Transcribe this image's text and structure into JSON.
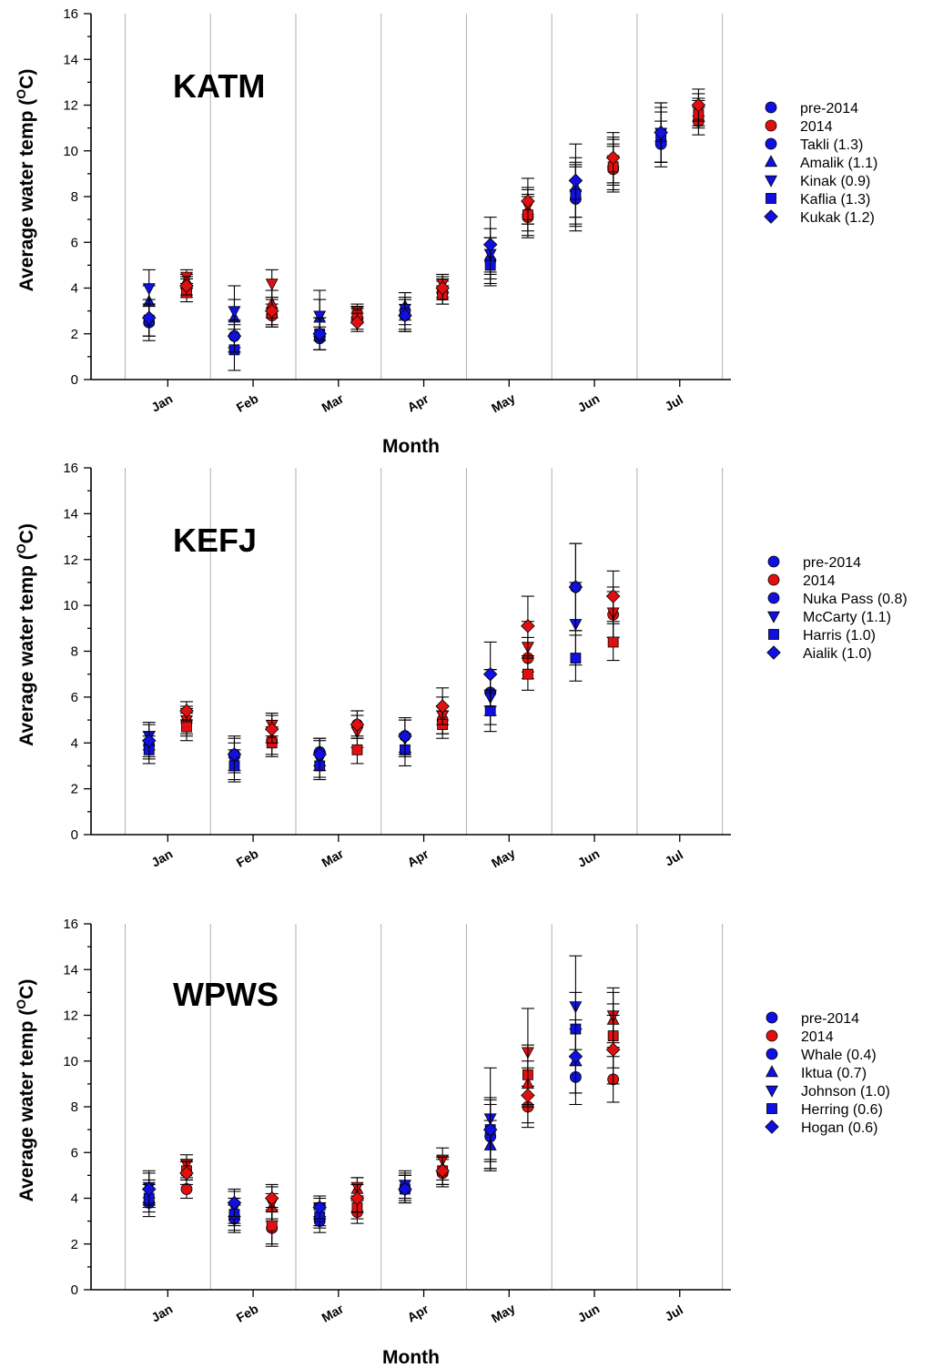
{
  "colors": {
    "pre2014": "#1010e0",
    "y2014": "#e01010",
    "axis": "#000000",
    "grid": "#b0b0b0",
    "error_bar": "#000000"
  },
  "chart_data": [
    {
      "type": "scatter",
      "title": "KATM",
      "xlabel": "Month",
      "ylabel": "Average water temp (°C)",
      "ylabel_prefix": "Average water temp (",
      "ylabel_sup": "O",
      "ylabel_suffix": "C)",
      "ylim": [
        0,
        16
      ],
      "yticks": [
        0,
        2,
        4,
        6,
        8,
        10,
        12,
        14,
        16
      ],
      "categories": [
        "Jan",
        "Feb",
        "Mar",
        "Apr",
        "May",
        "Jun",
        "Jul"
      ],
      "legend": [
        {
          "label": "pre-2014",
          "marker": "circle",
          "color": "pre2014"
        },
        {
          "label": "2014",
          "marker": "circle",
          "color": "y2014"
        },
        {
          "label": "Takli (1.3)",
          "marker": "circle",
          "color": "pre2014"
        },
        {
          "label": "Amalik (1.1)",
          "marker": "triangle-up",
          "color": "pre2014"
        },
        {
          "label": "Kinak (0.9)",
          "marker": "triangle-down",
          "color": "pre2014"
        },
        {
          "label": "Kaflia (1.3)",
          "marker": "square",
          "color": "pre2014"
        },
        {
          "label": "Kukak (1.2)",
          "marker": "diamond",
          "color": "pre2014"
        }
      ],
      "series": [
        {
          "site": "Takli",
          "marker": "circle",
          "pre2014": [
            [
              2.5,
              0.8
            ],
            [
              1.9,
              0.5
            ],
            [
              1.8,
              0.5
            ],
            [
              2.8,
              0.7
            ],
            [
              5.2,
              1.0
            ],
            [
              7.9,
              1.4
            ],
            [
              10.3,
              1.0
            ]
          ],
          "y2014": [
            [
              4.0,
              0.4
            ],
            [
              2.8,
              0.5
            ],
            [
              2.7,
              0.5
            ],
            [
              3.8,
              0.5
            ],
            [
              7.1,
              0.9
            ],
            [
              9.2,
              1.0
            ],
            [
              11.3,
              0.6
            ]
          ]
        },
        {
          "site": "Amalik",
          "marker": "triangle-up",
          "pre2014": [
            [
              3.4,
              0.7
            ],
            [
              2.7,
              0.8
            ],
            [
              2.7,
              0.8
            ],
            [
              3.2,
              0.6
            ],
            [
              5.4,
              0.8
            ],
            [
              8.4,
              1.3
            ],
            [
              10.6,
              1.1
            ]
          ],
          "y2014": [
            [
              4.3,
              0.3
            ],
            [
              3.3,
              0.6
            ],
            [
              2.9,
              0.3
            ],
            [
              4.0,
              0.4
            ],
            [
              7.4,
              0.9
            ],
            [
              9.5,
              1.0
            ],
            [
              11.7,
              0.6
            ]
          ]
        },
        {
          "site": "Kinak",
          "marker": "triangle-down",
          "pre2014": [
            [
              4.0,
              0.8
            ],
            [
              3.0,
              1.1
            ],
            [
              2.8,
              1.1
            ],
            [
              3.1,
              0.7
            ],
            [
              5.5,
              1.1
            ],
            [
              8.1,
              1.4
            ],
            [
              10.8,
              1.3
            ]
          ],
          "y2014": [
            [
              4.5,
              0.3
            ],
            [
              4.2,
              0.6
            ],
            [
              3.0,
              0.3
            ],
            [
              4.2,
              0.4
            ],
            [
              7.6,
              0.8
            ],
            [
              9.6,
              1.0
            ],
            [
              11.8,
              0.7
            ]
          ]
        },
        {
          "site": "Kaflia",
          "marker": "square",
          "pre2014": [
            [
              2.6,
              0.7
            ],
            [
              1.3,
              0.9
            ],
            [
              2.0,
              0.7
            ],
            [
              2.9,
              0.7
            ],
            [
              5.0,
              0.9
            ],
            [
              8.1,
              1.3
            ],
            [
              10.7,
              1.2
            ]
          ],
          "y2014": [
            [
              3.8,
              0.4
            ],
            [
              2.9,
              0.6
            ],
            [
              2.8,
              0.3
            ],
            [
              3.7,
              0.4
            ],
            [
              7.2,
              0.9
            ],
            [
              9.3,
              1.0
            ],
            [
              11.6,
              0.6
            ]
          ]
        },
        {
          "site": "Kukak",
          "marker": "diamond",
          "pre2014": [
            [
              2.7,
              0.8
            ],
            [
              1.9,
              0.7
            ],
            [
              2.0,
              0.7
            ],
            [
              2.8,
              0.7
            ],
            [
              5.9,
              1.2
            ],
            [
              8.7,
              1.6
            ],
            [
              10.8,
              1.3
            ]
          ],
          "y2014": [
            [
              4.1,
              0.4
            ],
            [
              3.0,
              0.6
            ],
            [
              2.5,
              0.4
            ],
            [
              4.0,
              0.5
            ],
            [
              7.8,
              1.0
            ],
            [
              9.7,
              1.1
            ],
            [
              12.0,
              0.7
            ]
          ]
        }
      ]
    },
    {
      "type": "scatter",
      "title": "KEFJ",
      "xlabel": "",
      "ylabel": "Average water temp (°C)",
      "ylabel_prefix": "Average water temp (",
      "ylabel_sup": "O",
      "ylabel_suffix": "C)",
      "ylim": [
        0,
        16
      ],
      "yticks": [
        0,
        2,
        4,
        6,
        8,
        10,
        12,
        14,
        16
      ],
      "categories": [
        "Jan",
        "Feb",
        "Mar",
        "Apr",
        "May",
        "Jun",
        "Jul"
      ],
      "legend": [
        {
          "label": "pre-2014",
          "marker": "circle",
          "color": "pre2014"
        },
        {
          "label": "2014",
          "marker": "circle",
          "color": "y2014"
        },
        {
          "label": "Nuka Pass (0.8)",
          "marker": "circle",
          "color": "pre2014"
        },
        {
          "label": "McCarty (1.1)",
          "marker": "triangle-down",
          "color": "pre2014"
        },
        {
          "label": "Harris (1.0)",
          "marker": "square",
          "color": "pre2014"
        },
        {
          "label": "Aialik (1.0)",
          "marker": "diamond",
          "color": "pre2014"
        }
      ],
      "series": [
        {
          "site": "Nuka Pass",
          "marker": "circle",
          "pre2014": [
            [
              3.9,
              0.6
            ],
            [
              3.5,
              0.7
            ],
            [
              3.6,
              0.6
            ],
            [
              4.3,
              0.7
            ],
            [
              6.2,
              1.0
            ],
            [
              10.8,
              1.9
            ],
            null
          ],
          "y2014": [
            [
              4.9,
              0.6
            ],
            [
              4.1,
              0.6
            ],
            [
              4.8,
              0.6
            ],
            [
              5.0,
              0.6
            ],
            [
              7.7,
              0.9
            ],
            [
              9.6,
              1.0
            ],
            null
          ]
        },
        {
          "site": "McCarty",
          "marker": "triangle-down",
          "pre2014": [
            [
              4.3,
              0.6
            ],
            [
              3.2,
              0.8
            ],
            [
              3.3,
              0.8
            ],
            [
              4.2,
              0.8
            ],
            [
              6.0,
              1.2
            ],
            [
              9.2,
              1.8
            ],
            null
          ],
          "y2014": [
            [
              5.0,
              0.6
            ],
            [
              4.8,
              0.5
            ],
            [
              4.5,
              0.7
            ],
            [
              5.2,
              0.8
            ],
            [
              8.2,
              1.1
            ],
            [
              9.7,
              1.1
            ],
            null
          ]
        },
        {
          "site": "Harris",
          "marker": "square",
          "pre2014": [
            [
              3.7,
              0.6
            ],
            [
              3.0,
              0.7
            ],
            [
              3.0,
              0.6
            ],
            [
              3.7,
              0.7
            ],
            [
              5.4,
              0.9
            ],
            [
              7.7,
              1.0
            ],
            null
          ],
          "y2014": [
            [
              4.7,
              0.6
            ],
            [
              4.0,
              0.6
            ],
            [
              3.7,
              0.6
            ],
            [
              4.8,
              0.6
            ],
            [
              7.0,
              0.7
            ],
            [
              8.4,
              0.8
            ],
            null
          ]
        },
        {
          "site": "Aialik",
          "marker": "diamond",
          "pre2014": [
            [
              4.1,
              0.7
            ],
            [
              3.5,
              0.8
            ],
            [
              3.5,
              0.7
            ],
            [
              4.3,
              0.8
            ],
            [
              7.0,
              1.4
            ],
            [
              10.8,
              1.9
            ],
            null
          ],
          "y2014": [
            [
              5.4,
              0.4
            ],
            [
              4.6,
              0.6
            ],
            [
              4.8,
              0.6
            ],
            [
              5.6,
              0.8
            ],
            [
              9.1,
              1.3
            ],
            [
              10.4,
              1.1
            ],
            null
          ]
        }
      ]
    },
    {
      "type": "scatter",
      "title": "WPWS",
      "xlabel": "Month",
      "ylabel": "Average water temp (°C)",
      "ylabel_prefix": "Average water temp (",
      "ylabel_sup": "O",
      "ylabel_suffix": "C)",
      "ylim": [
        0,
        16
      ],
      "yticks": [
        0,
        2,
        4,
        6,
        8,
        10,
        12,
        14,
        16
      ],
      "categories": [
        "Jan",
        "Feb",
        "Mar",
        "Apr",
        "May",
        "Jun",
        "Jul"
      ],
      "legend": [
        {
          "label": "pre-2014",
          "marker": "circle",
          "color": "pre2014"
        },
        {
          "label": "2014",
          "marker": "circle",
          "color": "y2014"
        },
        {
          "label": "Whale (0.4)",
          "marker": "circle",
          "color": "pre2014"
        },
        {
          "label": "Iktua (0.7)",
          "marker": "triangle-up",
          "color": "pre2014"
        },
        {
          "label": "Johnson (1.0)",
          "marker": "triangle-down",
          "color": "pre2014"
        },
        {
          "label": "Herring (0.6)",
          "marker": "square",
          "color": "pre2014"
        },
        {
          "label": "Hogan (0.6)",
          "marker": "diamond",
          "color": "pre2014"
        }
      ],
      "series": [
        {
          "site": "Whale",
          "marker": "circle",
          "pre2014": [
            [
              3.8,
              0.6
            ],
            [
              3.1,
              0.6
            ],
            [
              3.0,
              0.5
            ],
            [
              4.4,
              0.6
            ],
            [
              6.7,
              1.4
            ],
            [
              9.3,
              1.2
            ],
            null
          ],
          "y2014": [
            [
              4.4,
              0.4
            ],
            [
              2.7,
              0.8
            ],
            [
              3.4,
              0.5
            ],
            [
              5.1,
              0.6
            ],
            [
              8.0,
              0.9
            ],
            [
              9.2,
              1.0
            ],
            null
          ]
        },
        {
          "site": "Iktua",
          "marker": "triangle-up",
          "pre2014": [
            [
              4.2,
              0.6
            ],
            [
              3.4,
              0.6
            ],
            [
              3.3,
              0.5
            ],
            [
              4.5,
              0.6
            ],
            [
              6.3,
              1.1
            ],
            [
              10.0,
              1.4
            ],
            null
          ],
          "y2014": [
            [
              5.3,
              0.4
            ],
            [
              3.6,
              0.6
            ],
            [
              4.4,
              0.5
            ],
            [
              5.3,
              0.5
            ],
            [
              9.0,
              1.0
            ],
            [
              11.8,
              1.2
            ],
            null
          ]
        },
        {
          "site": "Johnson",
          "marker": "triangle-down",
          "pre2014": [
            [
              4.5,
              0.7
            ],
            [
              3.6,
              0.7
            ],
            [
              3.6,
              0.4
            ],
            [
              4.6,
              0.6
            ],
            [
              7.5,
              2.2
            ],
            [
              12.4,
              2.2
            ],
            null
          ],
          "y2014": [
            [
              5.5,
              0.4
            ],
            [
              3.8,
              0.7
            ],
            [
              4.5,
              0.4
            ],
            [
              5.7,
              0.5
            ],
            [
              10.4,
              1.9
            ],
            [
              12.0,
              1.2
            ],
            null
          ]
        },
        {
          "site": "Herring",
          "marker": "square",
          "pre2014": [
            [
              4.0,
              0.6
            ],
            [
              3.3,
              0.7
            ],
            [
              3.2,
              0.5
            ],
            [
              4.4,
              0.6
            ],
            [
              7.0,
              1.3
            ],
            [
              11.4,
              1.6
            ],
            null
          ],
          "y2014": [
            [
              5.2,
              0.4
            ],
            [
              2.8,
              0.8
            ],
            [
              3.6,
              0.5
            ],
            [
              5.2,
              0.6
            ],
            [
              9.4,
              1.3
            ],
            [
              11.1,
              1.4
            ],
            null
          ]
        },
        {
          "site": "Hogan",
          "marker": "diamond",
          "pre2014": [
            [
              4.4,
              0.7
            ],
            [
              3.8,
              0.6
            ],
            [
              3.6,
              0.5
            ],
            [
              4.4,
              0.6
            ],
            [
              7.0,
              1.4
            ],
            [
              10.2,
              1.6
            ],
            null
          ],
          "y2014": [
            [
              5.1,
              0.5
            ],
            [
              4.0,
              0.6
            ],
            [
              4.0,
              0.6
            ],
            [
              5.2,
              0.6
            ],
            [
              8.5,
              1.2
            ],
            [
              10.5,
              1.5
            ],
            null
          ]
        }
      ]
    }
  ]
}
